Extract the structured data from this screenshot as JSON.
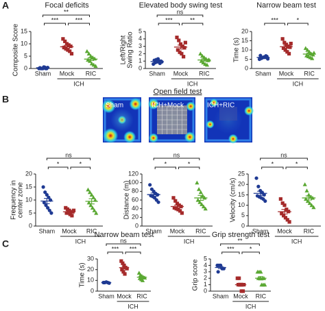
{
  "panels": [
    "A",
    "B",
    "C"
  ],
  "chart_data": [
    {
      "type": "dotplot",
      "title": "Focal deficits",
      "ylabel": [
        "Composite Score"
      ],
      "categories": [
        "Sham",
        "Mock",
        "RIC"
      ],
      "group_label": "ICH",
      "colors": [
        "#1f3a93",
        "#a52a2a",
        "#5aa832"
      ],
      "markers": [
        "circle",
        "square",
        "triangle"
      ],
      "points": [
        [
          0,
          0,
          0,
          0.5,
          0,
          0.3,
          0,
          0.6,
          0,
          0.4
        ],
        [
          12,
          11,
          10,
          9.5,
          9,
          8.5,
          8,
          7.5,
          7,
          6
        ],
        [
          7,
          6,
          5,
          4.5,
          4,
          3.5,
          3,
          2,
          1.5,
          1
        ]
      ],
      "means": [
        0.3,
        8.8,
        3.8
      ],
      "errors": [
        0.1,
        0.6,
        0.6
      ],
      "ylim": [
        0,
        15
      ],
      "yticks": [
        0,
        5,
        10,
        15
      ],
      "brackets": [
        {
          "groups": [
            "Sham",
            "Mock"
          ],
          "label": "***"
        },
        {
          "groups": [
            "Mock",
            "RIC"
          ],
          "label": "***"
        },
        {
          "groups": [
            "Sham",
            "RIC"
          ],
          "label": "**"
        }
      ]
    },
    {
      "type": "dotplot",
      "title": "Elevated body swing test",
      "ylabel": [
        "Left/Right",
        "Swing Ratio"
      ],
      "categories": [
        "Sham",
        "Mock",
        "RIC"
      ],
      "group_label": "ICH",
      "colors": [
        "#1f3a93",
        "#a52a2a",
        "#5aa832"
      ],
      "markers": [
        "circle",
        "square",
        "triangle"
      ],
      "points": [
        [
          0.6,
          0.8,
          0.9,
          1.0,
          1.0,
          1.1,
          1.2,
          1.3,
          0.7,
          0.9
        ],
        [
          4.2,
          3.8,
          3.3,
          3.0,
          2.8,
          2.5,
          2.2,
          2.0,
          1.6,
          3.5
        ],
        [
          2.0,
          1.7,
          1.5,
          1.3,
          1.1,
          1.0,
          0.8,
          0.6,
          0.5,
          1.2
        ]
      ],
      "means": [
        0.95,
        2.9,
        1.15
      ],
      "errors": [
        0.07,
        0.27,
        0.15
      ],
      "ylim": [
        0,
        5
      ],
      "yticks": [
        0,
        1,
        2,
        3,
        4,
        5
      ],
      "brackets": [
        {
          "groups": [
            "Sham",
            "Mock"
          ],
          "label": "***"
        },
        {
          "groups": [
            "Mock",
            "RIC"
          ],
          "label": "**"
        },
        {
          "groups": [
            "Sham",
            "RIC"
          ],
          "label": "ns"
        }
      ]
    },
    {
      "type": "dotplot",
      "title": "Narrow beam test",
      "ylabel": [
        "Time (s)"
      ],
      "categories": [
        "Sham",
        "Mock",
        "RIC"
      ],
      "group_label": "ICH",
      "colors": [
        "#1f3a93",
        "#a52a2a",
        "#5aa832"
      ],
      "markers": [
        "circle",
        "square",
        "triangle"
      ],
      "points": [
        [
          5,
          5.5,
          6,
          6,
          6.5,
          7,
          5.8,
          6.2,
          6.8,
          5.2
        ],
        [
          16,
          14,
          13,
          12,
          11.5,
          11,
          10,
          9,
          8,
          13.5
        ],
        [
          11,
          10,
          9,
          8,
          7.5,
          7,
          6.5,
          6,
          5.5,
          8.5
        ]
      ],
      "means": [
        6,
        11.8,
        7.8
      ],
      "errors": [
        0.2,
        0.8,
        0.55
      ],
      "ylim": [
        0,
        20
      ],
      "yticks": [
        0,
        5,
        10,
        15,
        20
      ],
      "brackets": [
        {
          "groups": [
            "Sham",
            "Mock"
          ],
          "label": "***"
        },
        {
          "groups": [
            "Mock",
            "RIC"
          ],
          "label": "*"
        }
      ]
    },
    {
      "type": "image-row",
      "title": "Open field test",
      "labels": [
        "Sham",
        "ICH+Mock",
        "ICH+RIC"
      ]
    },
    {
      "type": "dotplot",
      "title": null,
      "ylabel": [
        "Frequency in",
        "center zone"
      ],
      "categories": [
        "Sham",
        "Mock",
        "RIC"
      ],
      "group_label": "ICH",
      "colors": [
        "#1f3a93",
        "#a52a2a",
        "#5aa832"
      ],
      "markers": [
        "circle",
        "square",
        "triangle"
      ],
      "points": [
        [
          15,
          13,
          12,
          11,
          10,
          9,
          8,
          7,
          6,
          5
        ],
        [
          7,
          6.5,
          6,
          5.5,
          5.5,
          5,
          5,
          4.5,
          4,
          6
        ],
        [
          14,
          13,
          12,
          11,
          10,
          9,
          8,
          7,
          6,
          5
        ]
      ],
      "means": [
        9.6,
        5.5,
        9.5
      ],
      "errors": [
        1,
        0.3,
        1
      ],
      "ylim": [
        0,
        20
      ],
      "yticks": [
        0,
        5,
        10,
        15,
        20
      ],
      "brackets": [
        {
          "groups": [
            "Sham",
            "Mock"
          ],
          "label": "*"
        },
        {
          "groups": [
            "Mock",
            "RIC"
          ],
          "label": "*"
        },
        {
          "groups": [
            "Sham",
            "RIC"
          ],
          "label": "ns"
        }
      ]
    },
    {
      "type": "dotplot",
      "title": null,
      "ylabel": [
        "Distance (m)"
      ],
      "categories": [
        "Sham",
        "Mock",
        "RIC"
      ],
      "group_label": "ICH",
      "colors": [
        "#1f3a93",
        "#a52a2a",
        "#5aa832"
      ],
      "markers": [
        "circle",
        "square",
        "triangle"
      ],
      "points": [
        [
          95,
          85,
          80,
          75,
          72,
          70,
          68,
          65,
          60,
          55
        ],
        [
          65,
          58,
          52,
          48,
          45,
          42,
          40,
          38,
          35,
          30
        ],
        [
          100,
          85,
          78,
          70,
          65,
          60,
          55,
          50,
          45,
          40
        ]
      ],
      "means": [
        72.5,
        45,
        64.8
      ],
      "errors": [
        3.7,
        3.2,
        5.7
      ],
      "ylim": [
        0,
        120
      ],
      "yticks": [
        0,
        20,
        40,
        60,
        80,
        100,
        120
      ],
      "brackets": [
        {
          "groups": [
            "Sham",
            "Mock"
          ],
          "label": "*"
        },
        {
          "groups": [
            "Mock",
            "RIC"
          ],
          "label": "*"
        },
        {
          "groups": [
            "Sham",
            "RIC"
          ],
          "label": "ns"
        }
      ]
    },
    {
      "type": "dotplot",
      "title": null,
      "ylabel": [
        "Velocity (cm/s)"
      ],
      "categories": [
        "Sham",
        "Mock",
        "RIC"
      ],
      "group_label": "ICH",
      "colors": [
        "#1f3a93",
        "#a52a2a",
        "#5aa832"
      ],
      "markers": [
        "circle",
        "square",
        "triangle"
      ],
      "points": [
        [
          23,
          19,
          17,
          16,
          15,
          14.5,
          14,
          13.5,
          13,
          12
        ],
        [
          13,
          11,
          10,
          8,
          7,
          6,
          5,
          4,
          3,
          2
        ],
        [
          20,
          17,
          15,
          14,
          13.5,
          13,
          12,
          11,
          10,
          9
        ]
      ],
      "means": [
        15.7,
        6.9,
        13.5
      ],
      "errors": [
        1.0,
        1.1,
        1.0
      ],
      "ylim": [
        0,
        25
      ],
      "yticks": [
        0,
        5,
        10,
        15,
        20,
        25
      ],
      "brackets": [
        {
          "groups": [
            "Sham",
            "Mock"
          ],
          "label": "*"
        },
        {
          "groups": [
            "Mock",
            "RIC"
          ],
          "label": "*"
        },
        {
          "groups": [
            "Sham",
            "RIC"
          ],
          "label": "ns"
        }
      ]
    },
    {
      "type": "dotplot",
      "title": "Narrow beam test",
      "ylabel": [
        "Time (s)"
      ],
      "categories": [
        "Sham",
        "Mock",
        "RIC"
      ],
      "group_label": "ICH",
      "colors": [
        "#1f3a93",
        "#a52a2a",
        "#5aa832"
      ],
      "markers": [
        "circle",
        "square",
        "triangle"
      ],
      "points": [
        [
          8,
          8,
          8.5,
          8,
          7.5,
          8
        ],
        [
          28,
          26,
          24,
          22,
          21,
          20,
          18,
          16
        ],
        [
          17,
          15,
          14,
          13,
          12.5,
          12,
          11,
          10
        ]
      ],
      "means": [
        8,
        21.9,
        13
      ],
      "errors": [
        0.15,
        1.4,
        0.8
      ],
      "ylim": [
        0,
        30
      ],
      "yticks": [
        0,
        10,
        20,
        30
      ],
      "brackets": [
        {
          "groups": [
            "Sham",
            "Mock"
          ],
          "label": "***"
        },
        {
          "groups": [
            "Mock",
            "RIC"
          ],
          "label": "***"
        },
        {
          "groups": [
            "Sham",
            "RIC"
          ],
          "label": "ns"
        }
      ]
    },
    {
      "type": "dotplot",
      "title": "Grip strength test",
      "ylabel": [
        "Grip score"
      ],
      "categories": [
        "Sham",
        "Mock",
        "RIC"
      ],
      "group_label": "ICH",
      "colors": [
        "#1f3a93",
        "#a52a2a",
        "#5aa832"
      ],
      "markers": [
        "circle",
        "square",
        "triangle"
      ],
      "points": [
        [
          4,
          4,
          4,
          3.5,
          3.5,
          3
        ],
        [
          2,
          2,
          1,
          1,
          1,
          1,
          1,
          0,
          0
        ],
        [
          3,
          3,
          3,
          2,
          2,
          2,
          2,
          1,
          1,
          1
        ]
      ],
      "means": [
        3.67,
        1,
        2
      ],
      "errors": [
        0.17,
        0.24,
        0.26
      ],
      "ylim": [
        0,
        5
      ],
      "yticks": [
        0,
        1,
        2,
        3,
        4,
        5
      ],
      "brackets": [
        {
          "groups": [
            "Sham",
            "Mock"
          ],
          "label": "***"
        },
        {
          "groups": [
            "Mock",
            "RIC"
          ],
          "label": "*"
        },
        {
          "groups": [
            "Sham",
            "RIC"
          ],
          "label": "**"
        }
      ]
    }
  ]
}
